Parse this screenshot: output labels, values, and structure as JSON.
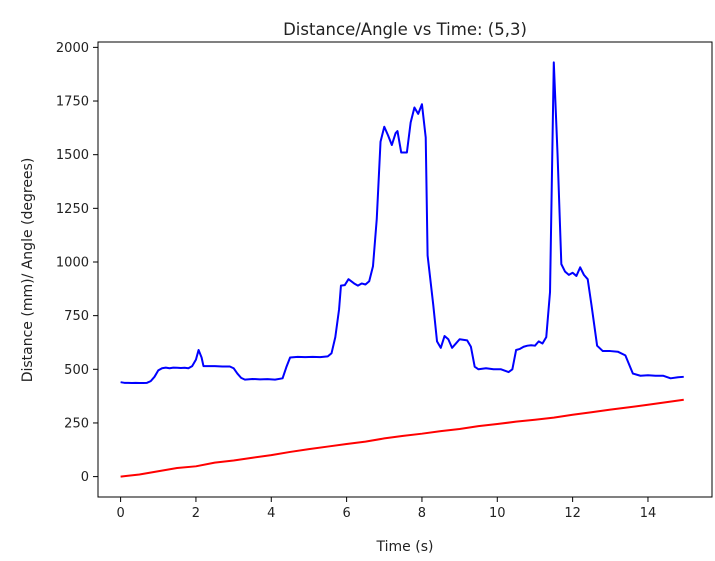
{
  "chart_data": {
    "type": "line",
    "title": "Distance/Angle vs Time: (5,3)",
    "xlabel": "Time (s)",
    "ylabel": "Distance (mm)/ Angle (degrees)",
    "xlim": [
      -0.6,
      15.7
    ],
    "ylim": [
      -95,
      2025
    ],
    "xticks": [
      0,
      2,
      4,
      6,
      8,
      10,
      12,
      14
    ],
    "yticks": [
      0,
      250,
      500,
      750,
      1000,
      1250,
      1500,
      1750,
      2000
    ],
    "grid": false,
    "series": [
      {
        "color": "#0000ff",
        "points": [
          [
            0,
            440
          ],
          [
            0.1,
            437
          ],
          [
            0.2,
            437
          ],
          [
            0.3,
            436
          ],
          [
            0.4,
            437
          ],
          [
            0.5,
            436
          ],
          [
            0.6,
            436
          ],
          [
            0.7,
            437
          ],
          [
            0.8,
            445
          ],
          [
            0.9,
            465
          ],
          [
            1.0,
            495
          ],
          [
            1.1,
            505
          ],
          [
            1.2,
            508
          ],
          [
            1.3,
            505
          ],
          [
            1.4,
            508
          ],
          [
            1.5,
            507
          ],
          [
            1.6,
            506
          ],
          [
            1.7,
            507
          ],
          [
            1.8,
            505
          ],
          [
            1.9,
            515
          ],
          [
            2.0,
            545
          ],
          [
            2.07,
            590
          ],
          [
            2.15,
            555
          ],
          [
            2.2,
            515
          ],
          [
            2.3,
            515
          ],
          [
            2.5,
            515
          ],
          [
            2.7,
            513
          ],
          [
            2.9,
            513
          ],
          [
            3.0,
            505
          ],
          [
            3.1,
            480
          ],
          [
            3.2,
            460
          ],
          [
            3.3,
            452
          ],
          [
            3.5,
            455
          ],
          [
            3.7,
            453
          ],
          [
            3.9,
            454
          ],
          [
            4.1,
            452
          ],
          [
            4.3,
            458
          ],
          [
            4.4,
            510
          ],
          [
            4.5,
            555
          ],
          [
            4.7,
            558
          ],
          [
            4.9,
            557
          ],
          [
            5.1,
            558
          ],
          [
            5.3,
            557
          ],
          [
            5.5,
            560
          ],
          [
            5.6,
            575
          ],
          [
            5.7,
            650
          ],
          [
            5.8,
            780
          ],
          [
            5.85,
            890
          ],
          [
            5.95,
            892
          ],
          [
            6.05,
            920
          ],
          [
            6.2,
            900
          ],
          [
            6.3,
            890
          ],
          [
            6.4,
            900
          ],
          [
            6.5,
            895
          ],
          [
            6.6,
            910
          ],
          [
            6.7,
            980
          ],
          [
            6.8,
            1200
          ],
          [
            6.9,
            1560
          ],
          [
            7.0,
            1630
          ],
          [
            7.1,
            1590
          ],
          [
            7.2,
            1545
          ],
          [
            7.3,
            1600
          ],
          [
            7.35,
            1610
          ],
          [
            7.45,
            1510
          ],
          [
            7.6,
            1510
          ],
          [
            7.7,
            1650
          ],
          [
            7.8,
            1720
          ],
          [
            7.9,
            1690
          ],
          [
            8.0,
            1735
          ],
          [
            8.1,
            1580
          ],
          [
            8.15,
            1030
          ],
          [
            8.3,
            800
          ],
          [
            8.4,
            630
          ],
          [
            8.5,
            600
          ],
          [
            8.6,
            655
          ],
          [
            8.7,
            640
          ],
          [
            8.8,
            600
          ],
          [
            8.9,
            620
          ],
          [
            9.0,
            640
          ],
          [
            9.2,
            635
          ],
          [
            9.3,
            605
          ],
          [
            9.4,
            512
          ],
          [
            9.5,
            500
          ],
          [
            9.7,
            505
          ],
          [
            9.9,
            500
          ],
          [
            10.1,
            500
          ],
          [
            10.3,
            487
          ],
          [
            10.4,
            500
          ],
          [
            10.5,
            590
          ],
          [
            10.6,
            595
          ],
          [
            10.7,
            605
          ],
          [
            10.8,
            610
          ],
          [
            10.9,
            612
          ],
          [
            11.0,
            610
          ],
          [
            11.1,
            630
          ],
          [
            11.2,
            620
          ],
          [
            11.3,
            650
          ],
          [
            11.4,
            860
          ],
          [
            11.5,
            1930
          ],
          [
            11.6,
            1500
          ],
          [
            11.7,
            990
          ],
          [
            11.8,
            955
          ],
          [
            11.9,
            940
          ],
          [
            12.0,
            950
          ],
          [
            12.1,
            935
          ],
          [
            12.2,
            975
          ],
          [
            12.3,
            940
          ],
          [
            12.4,
            920
          ],
          [
            12.5,
            800
          ],
          [
            12.65,
            610
          ],
          [
            12.8,
            585
          ],
          [
            13.0,
            585
          ],
          [
            13.2,
            582
          ],
          [
            13.4,
            565
          ],
          [
            13.6,
            480
          ],
          [
            13.8,
            470
          ],
          [
            14.0,
            472
          ],
          [
            14.2,
            470
          ],
          [
            14.4,
            470
          ],
          [
            14.6,
            458
          ],
          [
            14.8,
            463
          ],
          [
            14.95,
            465
          ]
        ]
      },
      {
        "color": "#ff0000",
        "points": [
          [
            0,
            0
          ],
          [
            0.5,
            10
          ],
          [
            1.0,
            25
          ],
          [
            1.5,
            40
          ],
          [
            2.0,
            48
          ],
          [
            2.5,
            65
          ],
          [
            3.0,
            75
          ],
          [
            3.5,
            88
          ],
          [
            4.0,
            100
          ],
          [
            4.5,
            115
          ],
          [
            5.0,
            128
          ],
          [
            5.5,
            140
          ],
          [
            6.0,
            152
          ],
          [
            6.5,
            163
          ],
          [
            7.0,
            178
          ],
          [
            7.5,
            190
          ],
          [
            8.0,
            200
          ],
          [
            8.5,
            212
          ],
          [
            9.0,
            222
          ],
          [
            9.5,
            235
          ],
          [
            10.0,
            245
          ],
          [
            10.5,
            256
          ],
          [
            11.0,
            265
          ],
          [
            11.5,
            275
          ],
          [
            12.0,
            288
          ],
          [
            12.5,
            300
          ],
          [
            13.0,
            312
          ],
          [
            13.5,
            323
          ],
          [
            14.0,
            335
          ],
          [
            14.5,
            347
          ],
          [
            14.95,
            358
          ]
        ]
      }
    ]
  }
}
